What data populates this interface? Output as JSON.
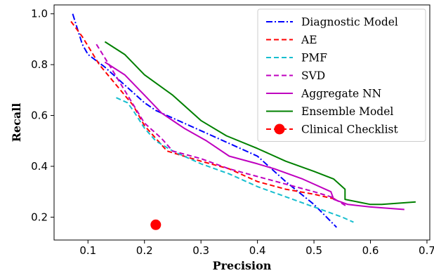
{
  "chart_data": {
    "type": "line",
    "title": "",
    "xlabel": "Precision",
    "ylabel": "Recall",
    "xlim": [
      0.04,
      0.705
    ],
    "ylim": [
      0.11,
      1.035
    ],
    "xticks": [
      0.1,
      0.2,
      0.3,
      0.4,
      0.5,
      0.6,
      0.7
    ],
    "xtick_labels": [
      "0.1",
      "0.2",
      "0.3",
      "0.4",
      "0.5",
      "0.6",
      "0.7"
    ],
    "yticks": [
      0.2,
      0.4,
      0.6,
      0.8,
      1.0
    ],
    "ytick_labels": [
      "0.2",
      "0.4",
      "0.6",
      "0.8",
      "1.0"
    ],
    "grid": false,
    "legend_position": "top-right",
    "series": [
      {
        "name": "Diagnostic Model",
        "color": "#0000ff",
        "dash": "dashdot",
        "kind": "line",
        "x": [
          0.073,
          0.08,
          0.09,
          0.1,
          0.13,
          0.16,
          0.18,
          0.2,
          0.22,
          0.25,
          0.3,
          0.35,
          0.4,
          0.45,
          0.5,
          0.54
        ],
        "y": [
          1.0,
          0.95,
          0.88,
          0.84,
          0.79,
          0.73,
          0.69,
          0.65,
          0.62,
          0.59,
          0.54,
          0.49,
          0.44,
          0.34,
          0.25,
          0.16
        ]
      },
      {
        "name": "AE",
        "color": "#ff0000",
        "dash": "dashed",
        "kind": "line",
        "x": [
          0.07,
          0.09,
          0.12,
          0.15,
          0.18,
          0.2,
          0.22,
          0.24,
          0.27,
          0.3,
          0.35,
          0.4,
          0.45,
          0.5,
          0.54
        ],
        "y": [
          0.97,
          0.91,
          0.8,
          0.72,
          0.64,
          0.56,
          0.51,
          0.46,
          0.44,
          0.42,
          0.39,
          0.34,
          0.31,
          0.29,
          0.27
        ]
      },
      {
        "name": "PMF",
        "color": "#17becf",
        "dash": "dashed",
        "kind": "line",
        "x": [
          0.15,
          0.17,
          0.18,
          0.2,
          0.22,
          0.25,
          0.3,
          0.35,
          0.4,
          0.45,
          0.5,
          0.55,
          0.57
        ],
        "y": [
          0.67,
          0.65,
          0.62,
          0.55,
          0.5,
          0.46,
          0.41,
          0.37,
          0.32,
          0.28,
          0.24,
          0.2,
          0.18
        ]
      },
      {
        "name": "SVD",
        "color": "#bf00bf",
        "dash": "dashed",
        "kind": "line",
        "x": [
          0.115,
          0.14,
          0.17,
          0.2,
          0.23,
          0.25,
          0.3,
          0.35,
          0.4,
          0.45,
          0.5,
          0.53,
          0.56
        ],
        "y": [
          0.88,
          0.79,
          0.68,
          0.57,
          0.51,
          0.46,
          0.43,
          0.39,
          0.36,
          0.33,
          0.3,
          0.28,
          0.24
        ]
      },
      {
        "name": "Aggregate NN",
        "color": "#bf00bf",
        "dash": "solid",
        "kind": "line",
        "x": [
          0.13,
          0.165,
          0.2,
          0.23,
          0.27,
          0.31,
          0.35,
          0.4,
          0.43,
          0.48,
          0.53,
          0.535,
          0.56,
          0.6,
          0.66
        ],
        "y": [
          0.81,
          0.76,
          0.68,
          0.61,
          0.55,
          0.5,
          0.44,
          0.41,
          0.39,
          0.35,
          0.3,
          0.27,
          0.25,
          0.24,
          0.23
        ]
      },
      {
        "name": "Ensemble Model",
        "color": "#008000",
        "dash": "solid",
        "kind": "line",
        "x": [
          0.13,
          0.165,
          0.2,
          0.25,
          0.3,
          0.345,
          0.4,
          0.45,
          0.5,
          0.535,
          0.555,
          0.555,
          0.6,
          0.62,
          0.68
        ],
        "y": [
          0.89,
          0.84,
          0.76,
          0.68,
          0.58,
          0.52,
          0.47,
          0.42,
          0.38,
          0.35,
          0.31,
          0.27,
          0.25,
          0.25,
          0.26
        ]
      },
      {
        "name": "Clinical Checklist",
        "color": "#ff0000",
        "dash": "dashed",
        "kind": "point",
        "x": [
          0.22
        ],
        "y": [
          0.17
        ]
      }
    ]
  }
}
